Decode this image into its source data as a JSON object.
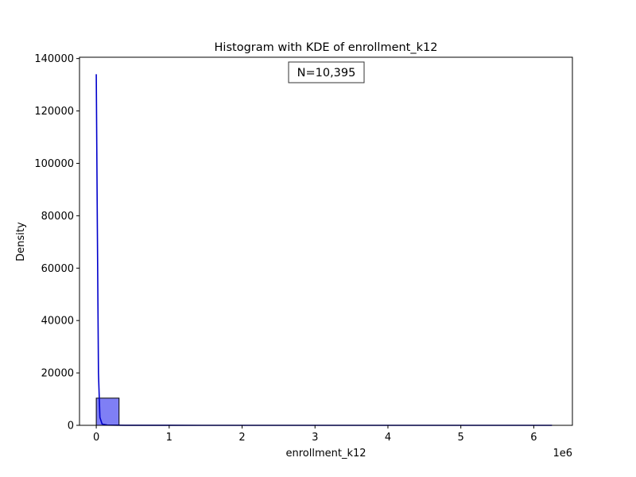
{
  "chart_data": {
    "type": "bar",
    "title": "Histogram with KDE of enrollment_k12",
    "xlabel": "enrollment_k12",
    "ylabel": "Density",
    "x_offset_label": "1e6",
    "annotation": "N=10,395",
    "xlim": [
      -230000,
      6530000
    ],
    "ylim": [
      0,
      140500
    ],
    "x_ticks": [
      0,
      1000000,
      2000000,
      3000000,
      4000000,
      5000000,
      6000000
    ],
    "x_tick_labels": [
      "0",
      "1",
      "2",
      "3",
      "4",
      "5",
      "6"
    ],
    "y_ticks": [
      0,
      20000,
      40000,
      60000,
      80000,
      100000,
      120000,
      140000
    ],
    "y_tick_labels": [
      "0",
      "20000",
      "40000",
      "60000",
      "80000",
      "100000",
      "120000",
      "140000"
    ],
    "grid": false,
    "bins": [
      {
        "x0": 0,
        "x1": 312500,
        "count": 10380
      },
      {
        "x0": 312500,
        "x1": 625000,
        "count": 6
      },
      {
        "x0": 625000,
        "x1": 937500,
        "count": 3
      },
      {
        "x0": 937500,
        "x1": 1250000,
        "count": 2
      },
      {
        "x0": 1250000,
        "x1": 1562500,
        "count": 1
      },
      {
        "x0": 1562500,
        "x1": 1875000,
        "count": 1
      },
      {
        "x0": 1875000,
        "x1": 2187500,
        "count": 0
      },
      {
        "x0": 2187500,
        "x1": 2500000,
        "count": 0
      },
      {
        "x0": 2500000,
        "x1": 2812500,
        "count": 0
      },
      {
        "x0": 2812500,
        "x1": 3125000,
        "count": 0
      },
      {
        "x0": 3125000,
        "x1": 3437500,
        "count": 0
      },
      {
        "x0": 3437500,
        "x1": 3750000,
        "count": 0
      },
      {
        "x0": 3750000,
        "x1": 4062500,
        "count": 0
      },
      {
        "x0": 4062500,
        "x1": 4375000,
        "count": 0
      },
      {
        "x0": 4375000,
        "x1": 4687500,
        "count": 0
      },
      {
        "x0": 4687500,
        "x1": 5000000,
        "count": 0
      },
      {
        "x0": 5000000,
        "x1": 5312500,
        "count": 0
      },
      {
        "x0": 5312500,
        "x1": 5625000,
        "count": 0
      },
      {
        "x0": 5625000,
        "x1": 5937500,
        "count": 1
      },
      {
        "x0": 5937500,
        "x1": 6250000,
        "count": 1
      }
    ],
    "kde": {
      "x": [
        0,
        15000,
        30000,
        50000,
        80000,
        150000,
        400000,
        1000000,
        2000000,
        3000000,
        4000000,
        5000000,
        6000000,
        6250000
      ],
      "y": [
        134000,
        75000,
        20000,
        3000,
        500,
        100,
        20,
        5,
        0,
        0,
        0,
        0,
        0,
        0
      ]
    },
    "colors": {
      "bar_fill": "#7f7ff5",
      "bar_edge": "#000000",
      "kde_line": "#0000cc"
    }
  }
}
